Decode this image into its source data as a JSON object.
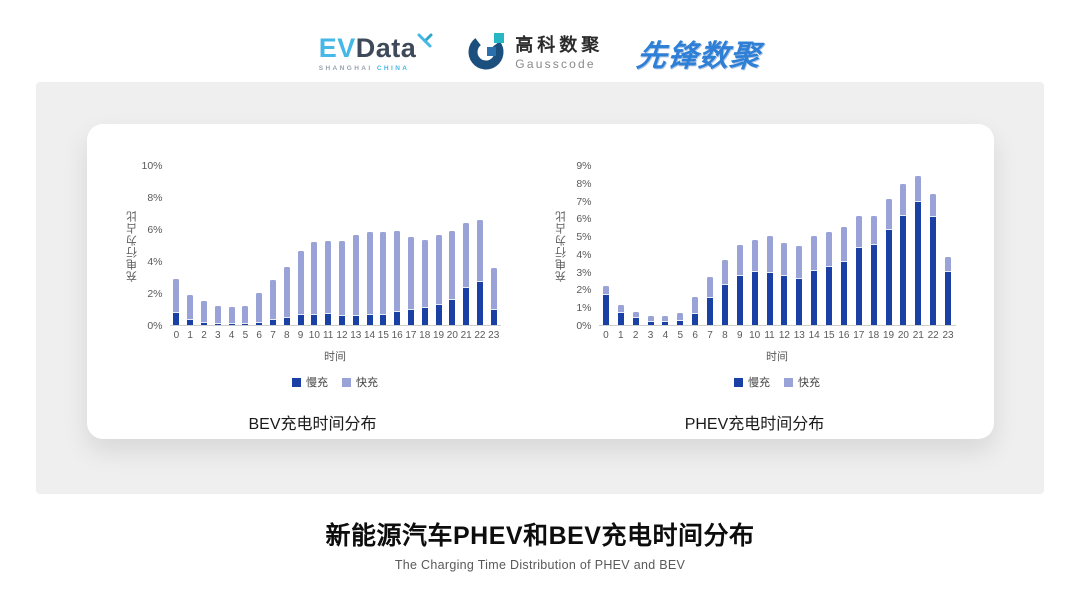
{
  "header": {
    "logos": {
      "evdata": {
        "part1": "EV",
        "part2": "Data",
        "sub1": "SHANGHAI",
        "sub2": "CHINA",
        "brand_color": "#45B8E8",
        "text_color": "#3E4A59"
      },
      "gausscode": {
        "name_cn": "高科数聚",
        "name_en": "Gausscode",
        "brand_navy": "#1B4F7E",
        "brand_teal": "#27B6C4"
      },
      "pioneer": {
        "name": "先锋数聚",
        "brand_color": "#2E7FD6"
      }
    }
  },
  "chart_data": [
    {
      "type": "bar",
      "stacked": true,
      "title": "BEV充电时间分布",
      "xlabel": "时间",
      "ylabel": "充电行为占比",
      "ylim": [
        0,
        10
      ],
      "ytick_step": 2,
      "ytick_suffix": "%",
      "grid": false,
      "legend_position": "bottom",
      "categories": [
        "0",
        "1",
        "2",
        "3",
        "4",
        "5",
        "6",
        "7",
        "8",
        "9",
        "10",
        "11",
        "12",
        "13",
        "14",
        "15",
        "16",
        "17",
        "18",
        "19",
        "20",
        "21",
        "22",
        "23"
      ],
      "series": [
        {
          "name": "慢充",
          "color": "#1A3FA5",
          "values": [
            0.8,
            0.35,
            0.2,
            0.15,
            0.1,
            0.15,
            0.2,
            0.35,
            0.5,
            0.7,
            0.7,
            0.75,
            0.6,
            0.6,
            0.7,
            0.7,
            0.85,
            1.0,
            1.1,
            1.3,
            1.6,
            2.4,
            2.75,
            1.0
          ]
        },
        {
          "name": "快充",
          "color": "#99A3D8",
          "values": [
            2.1,
            1.55,
            1.3,
            1.05,
            1.0,
            1.05,
            1.8,
            2.45,
            3.1,
            3.9,
            4.5,
            4.5,
            4.65,
            5.05,
            5.1,
            5.1,
            5.0,
            4.5,
            4.2,
            4.3,
            4.3,
            3.95,
            3.8,
            2.55
          ]
        }
      ]
    },
    {
      "type": "bar",
      "stacked": true,
      "title": "PHEV充电时间分布",
      "xlabel": "时间",
      "ylabel": "充电行为占比",
      "ylim": [
        0,
        9
      ],
      "ytick_step": 1,
      "ytick_suffix": "%",
      "grid": false,
      "legend_position": "bottom",
      "categories": [
        "0",
        "1",
        "2",
        "3",
        "4",
        "5",
        "6",
        "7",
        "8",
        "9",
        "10",
        "11",
        "12",
        "13",
        "14",
        "15",
        "16",
        "17",
        "18",
        "19",
        "20",
        "21",
        "22",
        "23"
      ],
      "series": [
        {
          "name": "慢充",
          "color": "#1A3FA5",
          "values": [
            1.75,
            0.75,
            0.45,
            0.25,
            0.25,
            0.3,
            0.7,
            1.6,
            2.3,
            2.8,
            3.05,
            3.0,
            2.8,
            2.65,
            3.1,
            3.3,
            3.6,
            4.4,
            4.55,
            5.4,
            6.2,
            7.0,
            6.15,
            3.05
          ]
        },
        {
          "name": "快充",
          "color": "#99A3D8",
          "values": [
            0.45,
            0.4,
            0.3,
            0.25,
            0.25,
            0.35,
            0.9,
            1.1,
            1.35,
            1.7,
            1.75,
            2.0,
            1.8,
            1.8,
            1.9,
            1.95,
            1.9,
            1.75,
            1.6,
            1.7,
            1.75,
            1.4,
            1.2,
            0.75
          ]
        }
      ]
    }
  ],
  "footer": {
    "title": "新能源汽车PHEV和BEV充电时间分布",
    "subtitle": "The Charging Time Distribution of PHEV and BEV"
  }
}
